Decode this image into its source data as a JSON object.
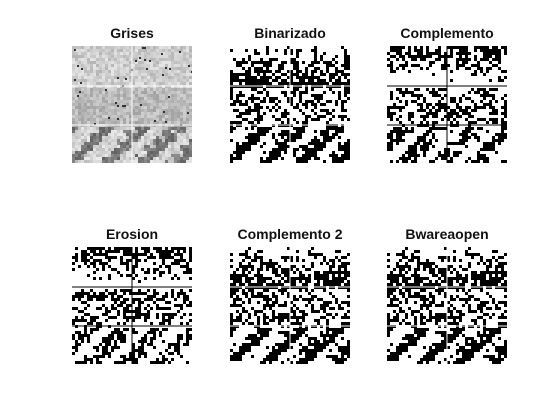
{
  "window": {
    "background": "#ffffff"
  },
  "subplots": [
    {
      "title": "Grises",
      "style": "gray"
    },
    {
      "title": "Binarizado",
      "style": "binary"
    },
    {
      "title": "Complemento",
      "style": "complement"
    },
    {
      "title": "Erosion",
      "style": "erosion"
    },
    {
      "title": "Complemento 2",
      "style": "complement2"
    },
    {
      "title": "Bwareaopen",
      "style": "bwareaopen"
    }
  ]
}
